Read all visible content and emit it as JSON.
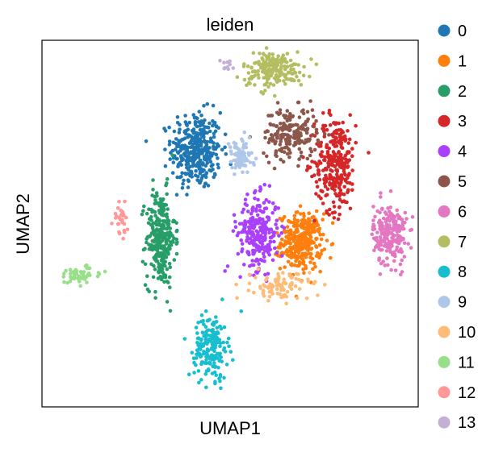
{
  "chart_data": {
    "type": "scatter",
    "title": "leiden",
    "xlabel": "UMAP1",
    "ylabel": "UMAP2",
    "ticks_shown": false,
    "grid": false,
    "legend_position": "right-outside",
    "xlim": [
      -10,
      10
    ],
    "ylim": [
      -10,
      10
    ],
    "series": [
      {
        "name": "0",
        "color": "#1f77b4",
        "center": [
          -1.8,
          4.0
        ],
        "spread": [
          1.2,
          1.9
        ],
        "n": 360
      },
      {
        "name": "1",
        "color": "#ff7f0e",
        "center": [
          3.8,
          -1.0
        ],
        "spread": [
          1.0,
          1.4
        ],
        "n": 320
      },
      {
        "name": "2",
        "color": "#279e68",
        "center": [
          -3.7,
          -0.8
        ],
        "spread": [
          0.7,
          2.4
        ],
        "n": 290
      },
      {
        "name": "3",
        "color": "#d62728",
        "center": [
          5.6,
          3.3
        ],
        "spread": [
          1.0,
          2.4
        ],
        "n": 290
      },
      {
        "name": "4",
        "color": "#aa40fc",
        "center": [
          1.5,
          -0.5
        ],
        "spread": [
          1.0,
          1.8
        ],
        "n": 260
      },
      {
        "name": "5",
        "color": "#8c564b",
        "center": [
          3.2,
          4.9
        ],
        "spread": [
          1.3,
          1.3
        ],
        "n": 200
      },
      {
        "name": "6",
        "color": "#e377c2",
        "center": [
          8.5,
          -0.6
        ],
        "spread": [
          0.8,
          1.5
        ],
        "n": 220
      },
      {
        "name": "7",
        "color": "#b5bd61",
        "center": [
          2.3,
          8.4
        ],
        "spread": [
          1.5,
          0.9
        ],
        "n": 190
      },
      {
        "name": "8",
        "color": "#17becf",
        "center": [
          -1.0,
          -6.7
        ],
        "spread": [
          0.8,
          1.6
        ],
        "n": 190
      },
      {
        "name": "9",
        "color": "#aec7e8",
        "center": [
          0.5,
          3.6
        ],
        "spread": [
          0.7,
          0.9
        ],
        "n": 80
      },
      {
        "name": "10",
        "color": "#ffbb78",
        "center": [
          2.7,
          -3.4
        ],
        "spread": [
          1.4,
          0.7
        ],
        "n": 90
      },
      {
        "name": "11",
        "color": "#98df8a",
        "center": [
          -8.0,
          -2.8
        ],
        "spread": [
          1.1,
          0.45
        ],
        "n": 55
      },
      {
        "name": "12",
        "color": "#ff9896",
        "center": [
          -5.8,
          0.2
        ],
        "spread": [
          0.35,
          0.9
        ],
        "n": 30
      },
      {
        "name": "13",
        "color": "#c5b0d5",
        "center": [
          -0.2,
          8.6
        ],
        "spread": [
          0.3,
          0.3
        ],
        "n": 10
      }
    ]
  }
}
